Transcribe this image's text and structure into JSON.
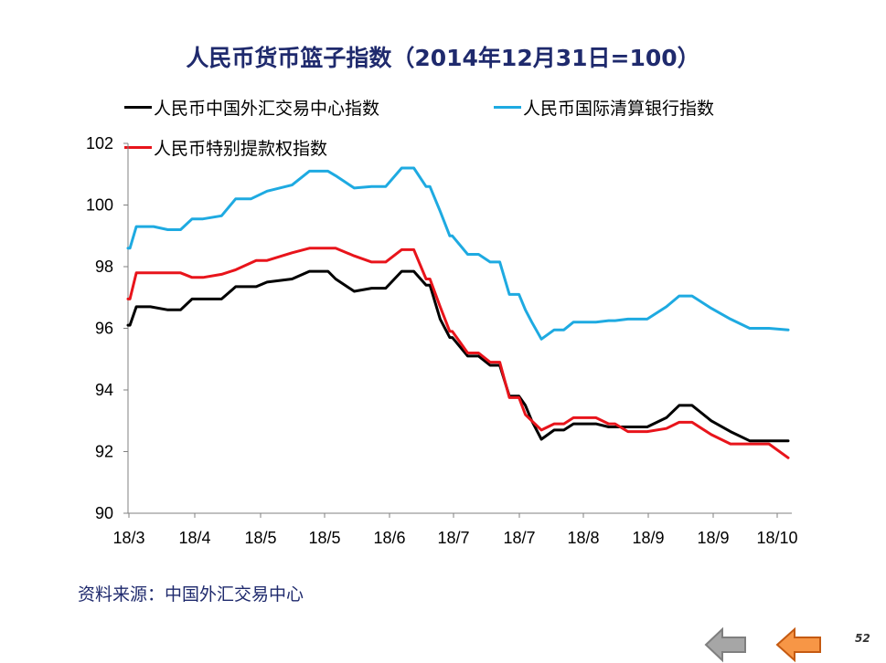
{
  "page": {
    "source_note": "资料来源：中国外汇交易中心",
    "page_number": "52"
  },
  "chart_data": {
    "type": "line",
    "title": "人民币货币篮子指数（2014年12月31日=100）",
    "xlabel": "",
    "ylabel": "",
    "ylim": [
      90,
      102
    ],
    "yticks": [
      90,
      92,
      94,
      96,
      98,
      100,
      102
    ],
    "x_tick_labels": [
      "18/3",
      "18/4",
      "18/5",
      "18/5",
      "18/6",
      "18/7",
      "18/7",
      "18/8",
      "18/9",
      "18/9",
      "18/10"
    ],
    "x_range": [
      0,
      10.3
    ],
    "grid": false,
    "legend_position": "top",
    "series": [
      {
        "name": "人民币中国外汇交易中心指数",
        "color": "#000000",
        "x": [
          0,
          0.03,
          0.13,
          0.35,
          0.62,
          0.82,
          1.0,
          1.17,
          1.46,
          1.68,
          2.0,
          2.17,
          2.56,
          2.83,
          3.12,
          3.24,
          3.53,
          3.8,
          4.02,
          4.27,
          4.46,
          4.65,
          4.71,
          4.87,
          5.02,
          5.06,
          5.3,
          5.47,
          5.65,
          5.8,
          5.95,
          6.1,
          6.2,
          6.3,
          6.45,
          6.65,
          6.8,
          6.95,
          7.3,
          7.5,
          7.6,
          7.8,
          8.1,
          8.4,
          8.6,
          8.8,
          9.1,
          9.4,
          9.7,
          10.0,
          10.3
        ],
        "values": [
          96.1,
          96.1,
          96.7,
          96.7,
          96.6,
          96.6,
          96.95,
          96.95,
          96.95,
          97.35,
          97.35,
          97.5,
          97.6,
          97.85,
          97.85,
          97.6,
          97.2,
          97.3,
          97.3,
          97.85,
          97.85,
          97.4,
          97.4,
          96.3,
          95.7,
          95.7,
          95.1,
          95.1,
          94.8,
          94.8,
          93.8,
          93.8,
          93.5,
          93.0,
          92.4,
          92.7,
          92.7,
          92.9,
          92.9,
          92.8,
          92.8,
          92.8,
          92.8,
          93.1,
          93.5,
          93.5,
          93.0,
          92.65,
          92.35,
          92.35,
          92.35
        ]
      },
      {
        "name": "人民币国际清算银行指数",
        "color": "#1eaae1",
        "x": [
          0,
          0.03,
          0.13,
          0.4,
          0.62,
          0.82,
          1.0,
          1.17,
          1.46,
          1.68,
          1.92,
          2.17,
          2.56,
          2.83,
          3.12,
          3.24,
          3.53,
          3.8,
          4.02,
          4.27,
          4.46,
          4.65,
          4.71,
          4.87,
          5.02,
          5.06,
          5.3,
          5.47,
          5.65,
          5.8,
          5.95,
          6.1,
          6.2,
          6.3,
          6.45,
          6.65,
          6.8,
          6.95,
          7.3,
          7.5,
          7.6,
          7.8,
          8.1,
          8.4,
          8.6,
          8.8,
          9.1,
          9.4,
          9.7,
          10.0,
          10.3
        ],
        "values": [
          98.6,
          98.6,
          99.3,
          99.3,
          99.2,
          99.2,
          99.55,
          99.55,
          99.65,
          100.2,
          100.2,
          100.45,
          100.65,
          101.1,
          101.1,
          100.95,
          100.55,
          100.6,
          100.6,
          101.2,
          101.2,
          100.6,
          100.6,
          99.8,
          99.0,
          99.0,
          98.4,
          98.4,
          98.15,
          98.15,
          97.1,
          97.1,
          96.6,
          96.2,
          95.65,
          95.95,
          95.95,
          96.2,
          96.2,
          96.25,
          96.25,
          96.3,
          96.3,
          96.7,
          97.05,
          97.05,
          96.65,
          96.3,
          96.0,
          96.0,
          95.95
        ]
      },
      {
        "name": "人民币特别提款权指数",
        "color": "#e8141b",
        "x": [
          0,
          0.03,
          0.13,
          0.35,
          0.62,
          0.82,
          1.0,
          1.17,
          1.46,
          1.68,
          2.0,
          2.17,
          2.56,
          2.83,
          3.12,
          3.24,
          3.53,
          3.8,
          4.02,
          4.27,
          4.46,
          4.65,
          4.71,
          4.87,
          5.02,
          5.06,
          5.3,
          5.47,
          5.65,
          5.8,
          5.95,
          6.1,
          6.2,
          6.3,
          6.45,
          6.65,
          6.8,
          6.95,
          7.3,
          7.5,
          7.6,
          7.8,
          8.1,
          8.4,
          8.6,
          8.8,
          9.1,
          9.4,
          9.7,
          10.0,
          10.3
        ],
        "values": [
          96.95,
          96.95,
          97.8,
          97.8,
          97.8,
          97.8,
          97.65,
          97.65,
          97.75,
          97.9,
          98.2,
          98.2,
          98.45,
          98.6,
          98.6,
          98.6,
          98.35,
          98.15,
          98.15,
          98.55,
          98.55,
          97.6,
          97.6,
          96.7,
          95.9,
          95.9,
          95.2,
          95.2,
          94.9,
          94.9,
          93.75,
          93.75,
          93.2,
          93.0,
          92.7,
          92.9,
          92.9,
          93.1,
          93.1,
          92.9,
          92.9,
          92.65,
          92.65,
          92.75,
          92.95,
          92.95,
          92.55,
          92.25,
          92.25,
          92.25,
          91.8
        ]
      }
    ]
  }
}
